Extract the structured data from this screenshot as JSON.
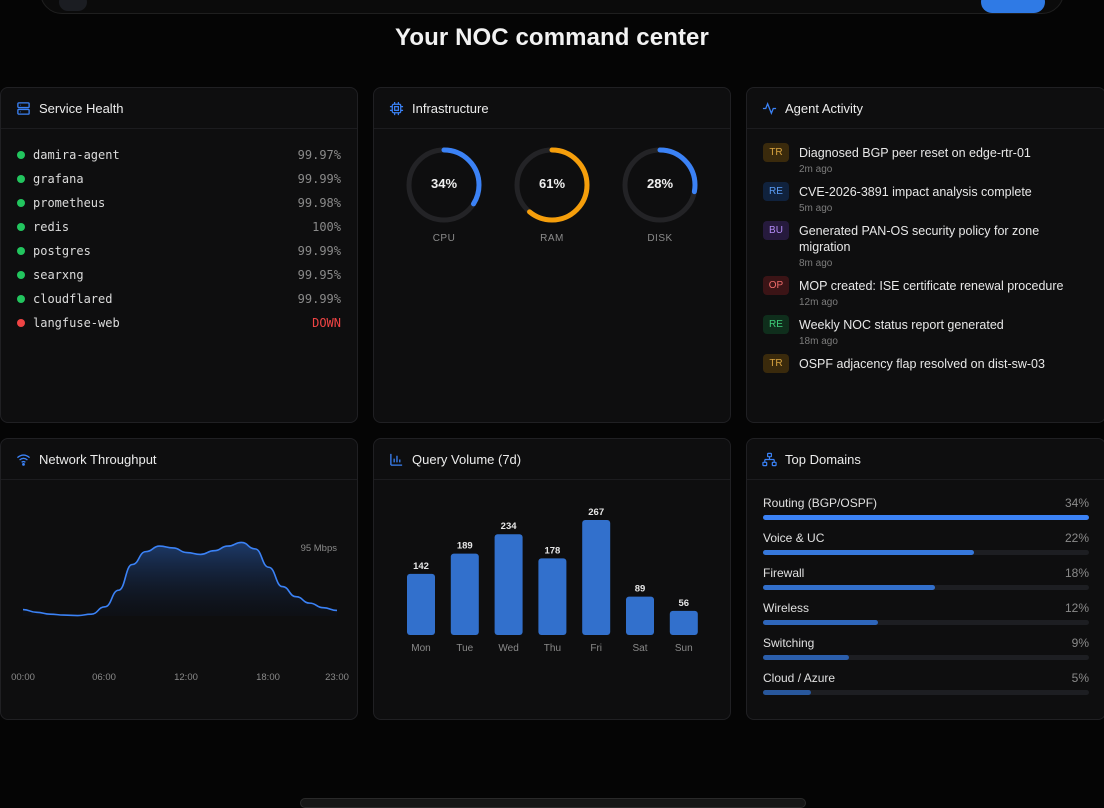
{
  "headline": "Your NOC command center",
  "colors": {
    "accent": "#3b82f6",
    "ok": "#22c55e",
    "down": "#ef4444",
    "ram": "#f59e0b"
  },
  "service_health": {
    "title": "Service Health",
    "items": [
      {
        "name": "damira-agent",
        "value": "99.97%",
        "status": "up"
      },
      {
        "name": "grafana",
        "value": "99.99%",
        "status": "up"
      },
      {
        "name": "prometheus",
        "value": "99.98%",
        "status": "up"
      },
      {
        "name": "redis",
        "value": "100%",
        "status": "up"
      },
      {
        "name": "postgres",
        "value": "99.99%",
        "status": "up"
      },
      {
        "name": "searxng",
        "value": "99.95%",
        "status": "up"
      },
      {
        "name": "cloudflared",
        "value": "99.99%",
        "status": "up"
      },
      {
        "name": "langfuse-web",
        "value": "DOWN",
        "status": "down"
      }
    ]
  },
  "infrastructure": {
    "title": "Infrastructure",
    "gauges": [
      {
        "label": "CPU",
        "value": 34,
        "display": "34%",
        "color": "#3b82f6"
      },
      {
        "label": "RAM",
        "value": 61,
        "display": "61%",
        "color": "#f59e0b"
      },
      {
        "label": "DISK",
        "value": 28,
        "display": "28%",
        "color": "#3b82f6"
      }
    ]
  },
  "agent_activity": {
    "title": "Agent Activity",
    "items": [
      {
        "tag": "TR",
        "tag_color": "#d9a441",
        "tag_bg": "#3a2a0c",
        "title": "Diagnosed BGP peer reset on edge-rtr-01",
        "time": "2m ago"
      },
      {
        "tag": "RE",
        "tag_color": "#5b9cf5",
        "tag_bg": "#10223d",
        "title": "CVE-2026-3891 impact analysis complete",
        "time": "5m ago"
      },
      {
        "tag": "BU",
        "tag_color": "#b28bf5",
        "tag_bg": "#261a3d",
        "title": "Generated PAN-OS security policy for zone migration",
        "time": "8m ago"
      },
      {
        "tag": "OP",
        "tag_color": "#ef6b6b",
        "tag_bg": "#3b1416",
        "title": "MOP created: ISE certificate renewal procedure",
        "time": "12m ago"
      },
      {
        "tag": "RE",
        "tag_color": "#3ecf7a",
        "tag_bg": "#0f2e1c",
        "title": "Weekly NOC status report generated",
        "time": "18m ago"
      },
      {
        "tag": "TR",
        "tag_color": "#d9a441",
        "tag_bg": "#3a2a0c",
        "title": "OSPF adjacency flap resolved on dist-sw-03",
        "time": ""
      }
    ]
  },
  "network_throughput": {
    "title": "Network Throughput",
    "peak_label": "95 Mbps",
    "x_ticks": [
      "00:00",
      "06:00",
      "12:00",
      "18:00",
      "23:00"
    ]
  },
  "query_volume": {
    "title": "Query Volume (7d)"
  },
  "top_domains": {
    "title": "Top Domains",
    "items": [
      {
        "name": "Routing (BGP/OSPF)",
        "pct": "34%",
        "fill": 1.0,
        "color": "#3b82f6"
      },
      {
        "name": "Voice & UC",
        "pct": "22%",
        "fill": 0.647,
        "color": "#3678dc"
      },
      {
        "name": "Firewall",
        "pct": "18%",
        "fill": 0.529,
        "color": "#326fcb"
      },
      {
        "name": "Wireless",
        "pct": "12%",
        "fill": 0.353,
        "color": "#2e66bb"
      },
      {
        "name": "Switching",
        "pct": "9%",
        "fill": 0.265,
        "color": "#2b5eab"
      },
      {
        "name": "Cloud / Azure",
        "pct": "5%",
        "fill": 0.147,
        "color": "#28579c"
      }
    ]
  },
  "chart_data": [
    {
      "type": "area",
      "title": "Network Throughput",
      "x": [
        0,
        1,
        2,
        3,
        4,
        5,
        6,
        7,
        8,
        9,
        10,
        11,
        12,
        13,
        14,
        15,
        16,
        17,
        18,
        19,
        20,
        21,
        22,
        23
      ],
      "values": [
        7,
        4,
        2,
        1,
        0.5,
        2,
        10,
        28,
        56,
        70,
        76,
        74,
        69,
        67,
        71,
        76,
        80,
        73,
        53,
        32,
        21,
        14,
        9,
        6
      ],
      "x_ticks": [
        "00:00",
        "06:00",
        "12:00",
        "18:00",
        "23:00"
      ],
      "annotation": "95 Mbps",
      "ylim": [
        0,
        95
      ]
    },
    {
      "type": "bar",
      "title": "Query Volume (7d)",
      "categories": [
        "Mon",
        "Tue",
        "Wed",
        "Thu",
        "Fri",
        "Sat",
        "Sun"
      ],
      "values": [
        142,
        189,
        234,
        178,
        267,
        89,
        56
      ],
      "ylim": [
        0,
        267
      ]
    }
  ]
}
